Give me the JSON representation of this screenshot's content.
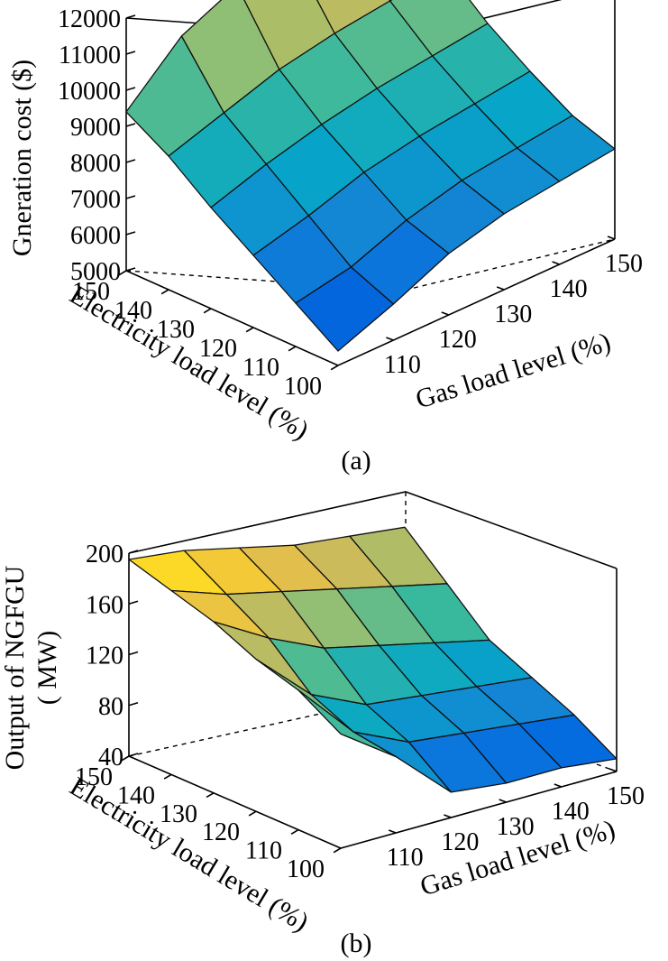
{
  "chart_data": [
    {
      "type": "surface",
      "panel_label": "(a)",
      "zlabel": "Gneration cost ($)",
      "xlabel": "Electricity load level (%)",
      "ylabel": "Gas load level (%)",
      "x": [
        100,
        110,
        120,
        130,
        140,
        150
      ],
      "y": [
        100,
        110,
        120,
        130,
        140,
        150
      ],
      "x_ticks": [
        "100",
        "110",
        "120",
        "130",
        "140",
        "150"
      ],
      "y_ticks": [
        "110",
        "120",
        "130",
        "140",
        "150"
      ],
      "z_ticks": [
        "5000",
        "6000",
        "7000",
        "8000",
        "9000",
        "10000",
        "11000",
        "12000"
      ],
      "zlim": [
        5000,
        12000
      ],
      "z": [
        [
          5400,
          6000,
          6700,
          7100,
          7300,
          7500
        ],
        [
          6200,
          6500,
          7100,
          7500,
          7700,
          7900
        ],
        [
          7000,
          7400,
          7900,
          8200,
          8400,
          8600
        ],
        [
          7800,
          8300,
          8700,
          9000,
          9200,
          9400
        ],
        [
          8700,
          9200,
          9700,
          10000,
          10200,
          10400
        ],
        [
          9400,
          10800,
          11500,
          11700,
          11900,
          12000
        ]
      ]
    },
    {
      "type": "surface",
      "panel_label": "(b)",
      "zlabel": "Output of NGFGU",
      "zlabel_unit": "( MW)",
      "xlabel": "Electricity load level (%)",
      "ylabel": "Gas load level (%)",
      "x": [
        100,
        110,
        120,
        130,
        140,
        150
      ],
      "y": [
        100,
        110,
        120,
        130,
        140,
        150
      ],
      "x_ticks": [
        "100",
        "110",
        "120",
        "130",
        "140",
        "150"
      ],
      "y_ticks": [
        "110",
        "120",
        "130",
        "140",
        "150"
      ],
      "z_ticks": [
        "40",
        "80",
        "120",
        "160",
        "200"
      ],
      "zlim": [
        40,
        200
      ],
      "z": [
        [
          130,
          100,
          60,
          55,
          55,
          50
        ],
        [
          150,
          105,
          85,
          80,
          75,
          70
        ],
        [
          160,
          120,
          100,
          95,
          90,
          85
        ],
        [
          175,
          150,
          130,
          120,
          110,
          100
        ],
        [
          185,
          170,
          160,
          150,
          140,
          130
        ],
        [
          195,
          190,
          180,
          170,
          165,
          160
        ]
      ]
    }
  ]
}
